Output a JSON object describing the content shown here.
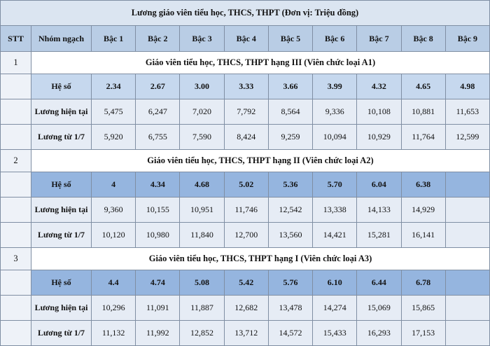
{
  "table": {
    "title": "Lương giáo viên tiểu học, THCS, THPT (Đơn vị: Triệu đồng)",
    "header": [
      "STT",
      "Nhóm ngạch",
      "Bậc 1",
      "Bậc 2",
      "Bậc 3",
      "Bậc 4",
      "Bậc 5",
      "Bậc 6",
      "Bậc 7",
      "Bậc 8",
      "Bậc 9"
    ],
    "groups": [
      {
        "stt": "1",
        "title": "Giáo viên tiểu học, THCS, THPT hạng III (Viên chức loại A1)",
        "rows": [
          {
            "label": "Hệ số",
            "values": [
              "2.34",
              "2.67",
              "3.00",
              "3.33",
              "3.66",
              "3.99",
              "4.32",
              "4.65",
              "4.98"
            ]
          },
          {
            "label": "Lương hiện tại",
            "values": [
              "5,475",
              "6,247",
              "7,020",
              "7,792",
              "8,564",
              "9,336",
              "10,108",
              "10,881",
              "11,653"
            ]
          },
          {
            "label": "Lương từ 1/7",
            "values": [
              "5,920",
              "6,755",
              "7,590",
              "8,424",
              "9,259",
              "10,094",
              "10,929",
              "11,764",
              "12,599"
            ]
          }
        ]
      },
      {
        "stt": "2",
        "title": "Giáo viên tiểu học, THCS, THPT hạng II (Viên chức loại A2)",
        "rows": [
          {
            "label": "Hệ số",
            "values": [
              "4",
              "4.34",
              "4.68",
              "5.02",
              "5.36",
              "5.70",
              "6.04",
              "6.38"
            ]
          },
          {
            "label": "Lương hiện tại",
            "values": [
              "9,360",
              "10,155",
              "10,951",
              "11,746",
              "12,542",
              "13,338",
              "14,133",
              "14,929"
            ]
          },
          {
            "label": "Lương từ 1/7",
            "values": [
              "10,120",
              "10,980",
              "11,840",
              "12,700",
              "13,560",
              "14,421",
              "15,281",
              "16,141"
            ]
          }
        ]
      },
      {
        "stt": "3",
        "title": "Giáo viên tiểu học, THCS, THPT hạng I (Viên chức loại A3)",
        "rows": [
          {
            "label": "Hệ số",
            "values": [
              "4.4",
              "4.74",
              "5.08",
              "5.42",
              "5.76",
              "6.10",
              "6.44",
              "6.78"
            ]
          },
          {
            "label": "Lương hiện tại",
            "values": [
              "10,296",
              "11,091",
              "11,887",
              "12,682",
              "13,478",
              "14,274",
              "15,069",
              "15,865"
            ]
          },
          {
            "label": "Lương từ 1/7",
            "values": [
              "11,132",
              "11,992",
              "12,852",
              "13,712",
              "14,572",
              "15,433",
              "16,293",
              "17,153"
            ]
          }
        ]
      }
    ]
  }
}
